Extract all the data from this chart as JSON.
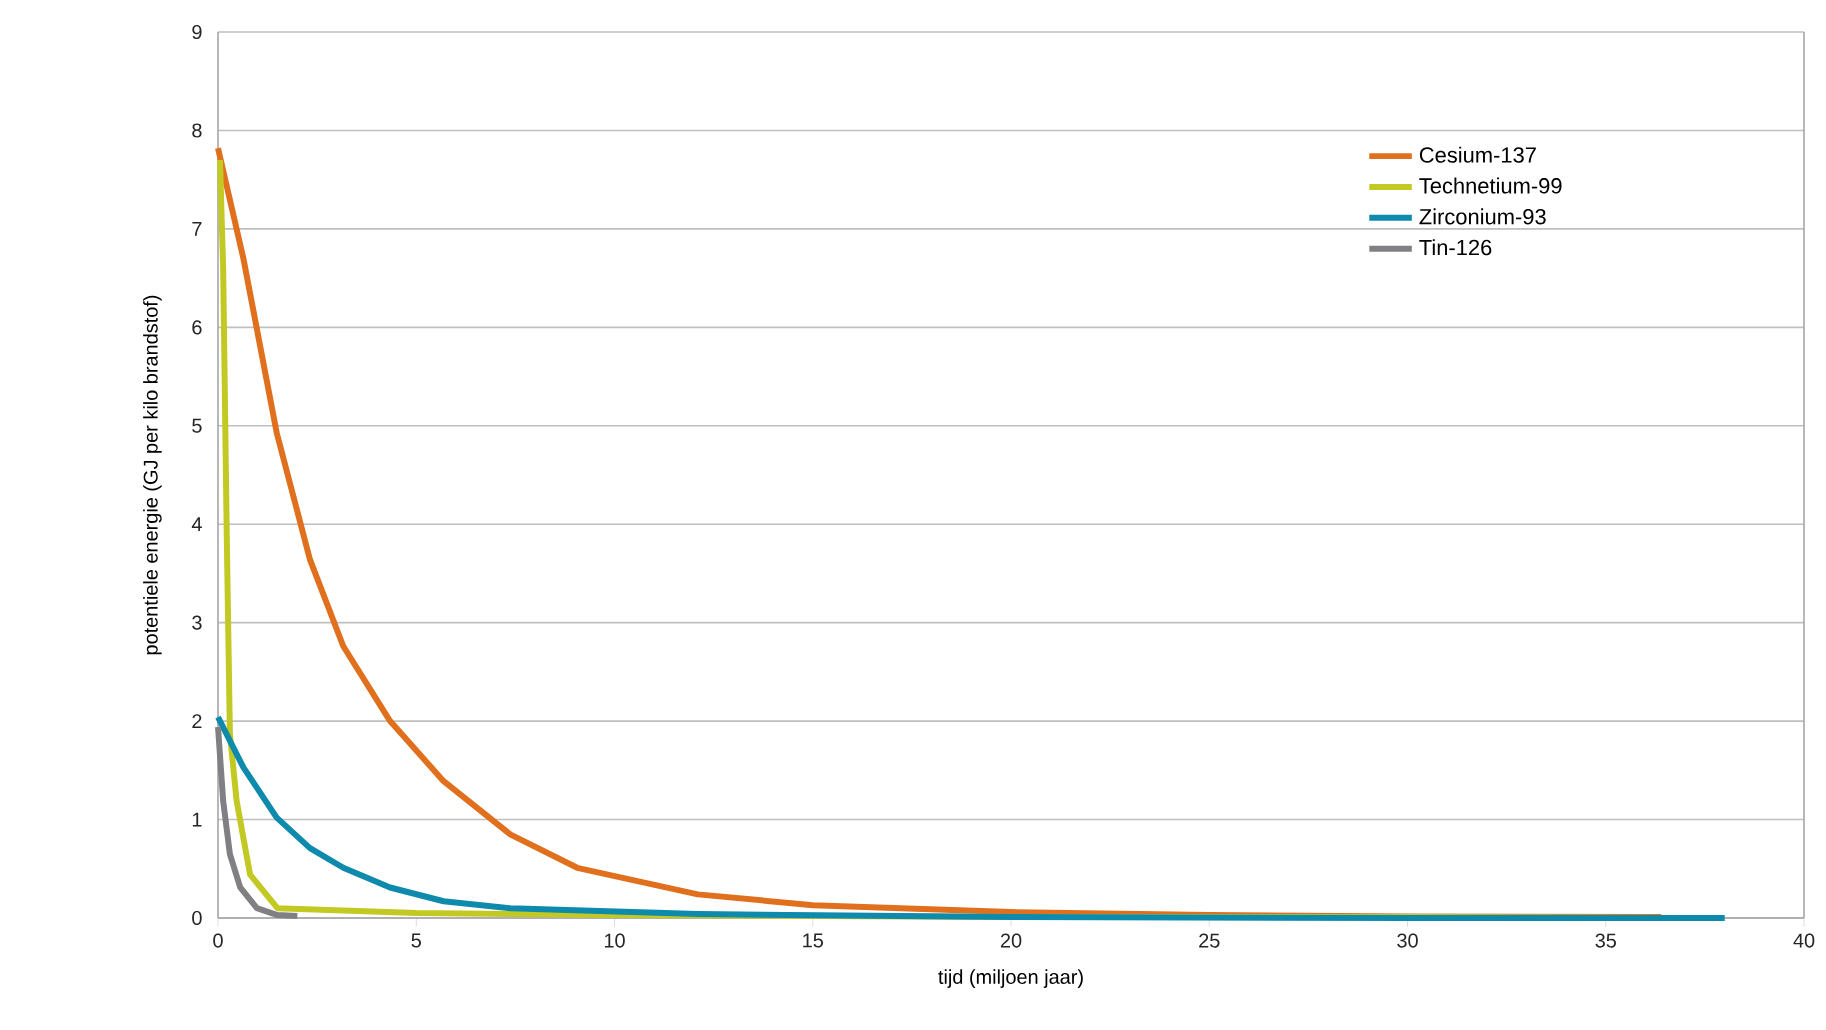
{
  "chart_data": {
    "type": "line",
    "xlabel": "tijd (miljoen jaar)",
    "ylabel": "potentiele energie (GJ per kilo brandstof)",
    "xlim": [
      0,
      40
    ],
    "xticks": [
      0,
      5,
      10,
      15,
      20,
      25,
      30,
      35,
      40
    ],
    "ylim": [
      0,
      9
    ],
    "yticks": [
      0,
      1,
      2,
      3,
      4,
      5,
      6,
      7,
      8,
      9
    ],
    "grid": "y",
    "legend": "top right",
    "marker": "none",
    "line_style": "solid",
    "series": [
      {
        "name": "Cesium-137",
        "color": "#e0701e",
        "x": [
          0,
          0.64,
          1.48,
          2.32,
          3.16,
          4.34,
          5.69,
          7.37,
          9.06,
          12.1,
          15,
          20,
          25,
          30,
          36.4
        ],
        "values": [
          7.82,
          6.7,
          4.93,
          3.64,
          2.76,
          2.0,
          1.39,
          0.85,
          0.51,
          0.24,
          0.13,
          0.06,
          0.03,
          0.015,
          0.01
        ]
      },
      {
        "name": "Technetium-99",
        "color": "#c3c923",
        "x": [
          0.05,
          0.13,
          0.22,
          0.3,
          0.47,
          0.81,
          1.5,
          5,
          10,
          20,
          30,
          37
        ],
        "values": [
          7.7,
          6.6,
          3.9,
          1.87,
          1.19,
          0.44,
          0.1,
          0.05,
          0.03,
          0.01,
          0.01,
          0.0
        ]
      },
      {
        "name": "Zirconium-93",
        "color": "#0e8aad",
        "x": [
          0,
          0.64,
          1.48,
          2.32,
          3.16,
          4.34,
          5.69,
          7.37,
          12.1,
          20,
          30,
          38
        ],
        "values": [
          2.04,
          1.53,
          1.02,
          0.71,
          0.51,
          0.31,
          0.17,
          0.1,
          0.04,
          0.01,
          0.0,
          0.0
        ]
      },
      {
        "name": "Tin-126",
        "color": "#808084",
        "x": [
          0,
          0.13,
          0.3,
          0.56,
          0.98,
          1.5,
          2.0
        ],
        "values": [
          1.94,
          1.19,
          0.65,
          0.31,
          0.1,
          0.03,
          0.02
        ]
      }
    ]
  }
}
